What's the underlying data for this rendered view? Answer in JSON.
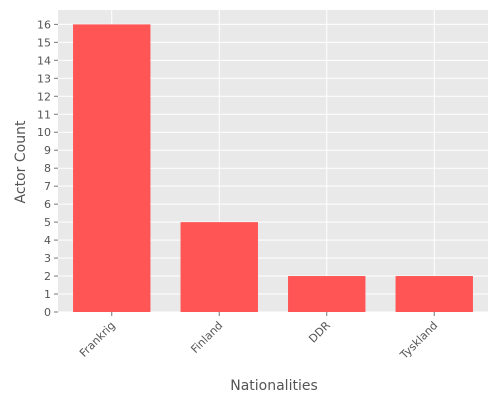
{
  "chart_data": {
    "type": "bar",
    "title": "",
    "xlabel": "Nationalities",
    "ylabel": "Actor Count",
    "categories": [
      "Frankrig",
      "Finland",
      "DDR",
      "Tyskland"
    ],
    "values": [
      16,
      5,
      2,
      2
    ],
    "ylim": [
      0,
      16.8
    ],
    "yticks": [
      0,
      1,
      2,
      3,
      4,
      5,
      6,
      7,
      8,
      9,
      10,
      11,
      12,
      13,
      14,
      15,
      16
    ],
    "grid": true,
    "legend": "none",
    "colors": {
      "bar": "#ff5555",
      "plot_background": "#e9e9e9",
      "grid": "#ffffff",
      "text": "#555555"
    }
  }
}
